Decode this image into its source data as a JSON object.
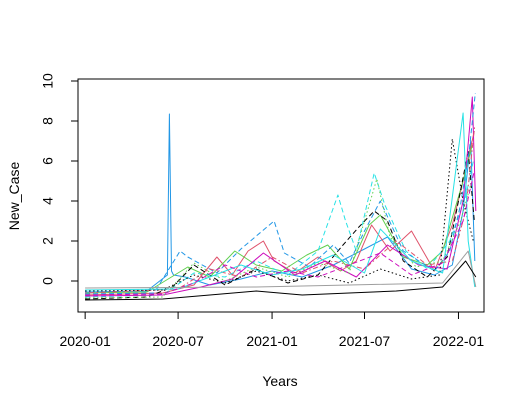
{
  "chart_data": {
    "type": "line",
    "title": "",
    "xlabel": "Years",
    "ylabel": "New_Case",
    "xlim": [
      "2019-12-18",
      "2022-02-20"
    ],
    "ylim": [
      -1.55,
      10.1
    ],
    "x_ticks": [
      "2020-01-01",
      "2020-07-01",
      "2021-01-01",
      "2021-07-01",
      "2022-01-01"
    ],
    "x_tick_labels": [
      "2020-01",
      "2020-07",
      "2021-01",
      "2021-07",
      "2022-01"
    ],
    "y_ticks": [
      0,
      2,
      4,
      6,
      8,
      10
    ],
    "y_tick_labels": [
      "0",
      "2",
      "4",
      "6",
      "8",
      "10"
    ],
    "grid": false,
    "legend": "none",
    "line_styles": [
      "solid",
      "dashed",
      "dotted",
      "dotdash"
    ],
    "palette": [
      "#000000",
      "#DF536B",
      "#61D04F",
      "#2297E6",
      "#28E2E5",
      "#CD0BBC",
      "#F5C710",
      "#9E9E9E"
    ],
    "series": [
      {
        "color": "#2297E6",
        "style": "solid",
        "x": [
          "2020-01-01",
          "2020-05-01",
          "2020-06-10",
          "2020-06-14",
          "2020-06-18",
          "2020-06-22",
          "2020-07-15",
          "2020-09-01",
          "2020-11-01",
          "2021-01-01",
          "2021-03-01",
          "2021-05-01",
          "2021-07-01",
          "2021-08-15",
          "2021-10-01",
          "2021-11-15",
          "2021-12-20",
          "2022-01-10",
          "2022-01-25",
          "2022-02-02"
        ],
        "y": [
          -0.55,
          -0.5,
          0.3,
          8.35,
          0.5,
          0.3,
          0.2,
          -0.2,
          0.1,
          0.5,
          0.2,
          0.8,
          1.6,
          2.2,
          0.6,
          0.3,
          0.8,
          3.5,
          7.0,
          1.0
        ]
      },
      {
        "color": "#DF536B",
        "style": "solid",
        "x": [
          "2020-01-01",
          "2020-06-01",
          "2020-08-01",
          "2020-09-15",
          "2020-10-15",
          "2020-11-15",
          "2020-12-15",
          "2021-01-05",
          "2021-02-15",
          "2021-04-01",
          "2021-05-15",
          "2021-06-15",
          "2021-07-15",
          "2021-08-20",
          "2021-10-01",
          "2021-11-15",
          "2021-12-20",
          "2022-01-15",
          "2022-02-01"
        ],
        "y": [
          -0.7,
          -0.6,
          -0.2,
          1.2,
          0.3,
          1.5,
          2.0,
          1.0,
          0.4,
          1.2,
          0.5,
          1.0,
          2.8,
          1.5,
          2.5,
          0.5,
          2.8,
          5.5,
          7.5
        ]
      },
      {
        "color": "#61D04F",
        "style": "solid",
        "x": [
          "2020-01-01",
          "2020-05-01",
          "2020-07-20",
          "2020-09-01",
          "2020-10-20",
          "2020-12-01",
          "2021-01-20",
          "2021-03-10",
          "2021-04-20",
          "2021-06-01",
          "2021-07-10",
          "2021-08-01",
          "2021-09-15",
          "2021-11-01",
          "2021-12-01",
          "2022-01-10",
          "2022-01-28"
        ],
        "y": [
          -0.6,
          -0.55,
          0.7,
          0.2,
          1.5,
          0.8,
          0.5,
          1.3,
          1.8,
          0.6,
          2.8,
          3.3,
          1.2,
          0.8,
          1.5,
          5.0,
          6.8
        ]
      },
      {
        "color": "#000000",
        "style": "dashed",
        "x": [
          "2020-01-01",
          "2020-05-01",
          "2020-06-20",
          "2020-08-01",
          "2020-10-01",
          "2020-12-01",
          "2021-02-01",
          "2021-04-01",
          "2021-05-20",
          "2021-06-20",
          "2021-07-20",
          "2021-08-15",
          "2021-09-15",
          "2021-11-01",
          "2021-12-10",
          "2022-01-05",
          "2022-01-20",
          "2022-02-01"
        ],
        "y": [
          -0.9,
          -0.8,
          -0.3,
          0.8,
          -0.2,
          0.6,
          -0.1,
          0.3,
          1.8,
          2.7,
          3.5,
          3.0,
          1.0,
          0.2,
          1.2,
          4.5,
          6.5,
          3.0
        ]
      },
      {
        "color": "#28E2E5",
        "style": "dashed",
        "x": [
          "2020-01-01",
          "2020-06-01",
          "2020-08-01",
          "2020-10-01",
          "2020-12-01",
          "2021-02-01",
          "2021-04-01",
          "2021-05-10",
          "2021-05-25",
          "2021-06-15",
          "2021-07-20",
          "2021-08-10",
          "2021-09-20",
          "2021-11-01",
          "2021-12-15",
          "2022-01-15",
          "2022-01-30"
        ],
        "y": [
          -0.8,
          -0.7,
          0.4,
          0.2,
          1.0,
          0.3,
          1.5,
          4.3,
          3.0,
          1.5,
          5.4,
          3.8,
          1.5,
          0.6,
          2.0,
          4.2,
          6.0
        ]
      },
      {
        "color": "#CD0BBC",
        "style": "solid",
        "x": [
          "2020-01-01",
          "2020-06-01",
          "2020-08-15",
          "2020-10-15",
          "2020-12-15",
          "2021-02-15",
          "2021-04-15",
          "2021-06-15",
          "2021-08-15",
          "2021-10-15",
          "2021-12-10",
          "2022-01-10",
          "2022-01-28",
          "2022-02-04"
        ],
        "y": [
          -0.75,
          -0.7,
          -0.3,
          0.1,
          1.4,
          0.3,
          1.0,
          0.2,
          1.8,
          0.8,
          0.6,
          4.0,
          9.2,
          3.5
        ]
      },
      {
        "color": "#2297E6",
        "style": "dashed",
        "x": [
          "2020-01-01",
          "2020-05-15",
          "2020-07-05",
          "2020-07-20",
          "2020-09-15",
          "2020-11-01",
          "2021-01-05",
          "2021-01-25",
          "2021-03-15",
          "2021-05-01",
          "2021-06-01",
          "2021-07-01",
          "2021-08-01",
          "2021-09-15",
          "2021-11-15",
          "2021-12-15",
          "2022-01-05",
          "2022-01-22",
          "2022-02-03"
        ],
        "y": [
          -0.65,
          -0.6,
          1.5,
          1.2,
          0.4,
          1.6,
          3.0,
          1.4,
          0.7,
          1.8,
          0.9,
          2.5,
          4.0,
          1.5,
          0.5,
          1.5,
          3.8,
          6.5,
          9.4
        ]
      },
      {
        "color": "#61D04F",
        "style": "dotted",
        "x": [
          "2020-01-01",
          "2020-06-01",
          "2020-08-01",
          "2020-10-01",
          "2020-12-01",
          "2021-02-01",
          "2021-04-01",
          "2021-06-01",
          "2021-07-25",
          "2021-08-20",
          "2021-10-10",
          "2021-12-01",
          "2022-01-05",
          "2022-01-25"
        ],
        "y": [
          -0.85,
          -0.8,
          0.9,
          0.0,
          0.7,
          0.2,
          0.9,
          0.4,
          5.1,
          2.2,
          0.7,
          1.0,
          3.0,
          4.8
        ]
      },
      {
        "color": "#DF536B",
        "style": "dotdash",
        "x": [
          "2020-01-01",
          "2020-07-01",
          "2020-09-01",
          "2020-11-01",
          "2021-01-01",
          "2021-03-01",
          "2021-05-01",
          "2021-07-01",
          "2021-09-01",
          "2021-11-01",
          "2021-12-20",
          "2022-01-15",
          "2022-02-02"
        ],
        "y": [
          -0.6,
          -0.4,
          0.6,
          0.2,
          1.2,
          0.4,
          1.0,
          0.6,
          2.0,
          0.8,
          1.0,
          3.5,
          7.8
        ]
      },
      {
        "color": "#000000",
        "style": "dotted",
        "x": [
          "2020-01-01",
          "2020-06-01",
          "2020-08-01",
          "2020-10-01",
          "2020-12-01",
          "2021-02-01",
          "2021-04-01",
          "2021-06-01",
          "2021-08-01",
          "2021-10-01",
          "2021-11-25",
          "2021-12-20",
          "2022-01-10",
          "2022-01-30"
        ],
        "y": [
          -0.5,
          -0.45,
          0.3,
          -0.1,
          0.5,
          0.0,
          0.3,
          -0.1,
          0.6,
          0.1,
          0.3,
          7.1,
          4.0,
          2.0
        ]
      },
      {
        "color": "#28E2E5",
        "style": "solid",
        "x": [
          "2020-01-01",
          "2020-07-01",
          "2020-09-01",
          "2020-11-01",
          "2021-01-01",
          "2021-03-01",
          "2021-05-01",
          "2021-07-01",
          "2021-08-01",
          "2021-10-01",
          "2021-12-01",
          "2022-01-10",
          "2022-01-20",
          "2022-02-02"
        ],
        "y": [
          -0.45,
          -0.4,
          0.2,
          0.8,
          0.3,
          0.6,
          1.3,
          0.4,
          2.6,
          1.0,
          0.4,
          8.4,
          2.0,
          -0.3
        ]
      },
      {
        "color": "#CD0BBC",
        "style": "dashed",
        "x": [
          "2020-01-01",
          "2020-06-01",
          "2020-08-01",
          "2020-10-01",
          "2020-12-01",
          "2021-02-01",
          "2021-04-01",
          "2021-06-01",
          "2021-08-01",
          "2021-10-01",
          "2021-12-01",
          "2022-01-10",
          "2022-02-01"
        ],
        "y": [
          -0.7,
          -0.65,
          -0.1,
          0.8,
          0.2,
          0.5,
          0.2,
          0.8,
          1.4,
          0.3,
          0.9,
          3.0,
          5.5
        ]
      },
      {
        "color": "#9E9E9E",
        "style": "solid",
        "x": [
          "2020-01-01",
          "2020-12-01",
          "2021-06-01",
          "2021-12-01",
          "2022-01-20",
          "2022-02-04"
        ],
        "y": [
          -0.35,
          -0.3,
          -0.2,
          -0.1,
          1.5,
          -0.3
        ]
      },
      {
        "color": "#000000",
        "style": "solid",
        "x": [
          "2020-01-01",
          "2020-06-01",
          "2020-09-01",
          "2020-12-01",
          "2021-03-01",
          "2021-06-01",
          "2021-09-01",
          "2021-12-01",
          "2022-01-15",
          "2022-02-04"
        ],
        "y": [
          -0.95,
          -0.9,
          -0.7,
          -0.5,
          -0.7,
          -0.6,
          -0.5,
          -0.3,
          1.0,
          0.2
        ]
      }
    ]
  }
}
